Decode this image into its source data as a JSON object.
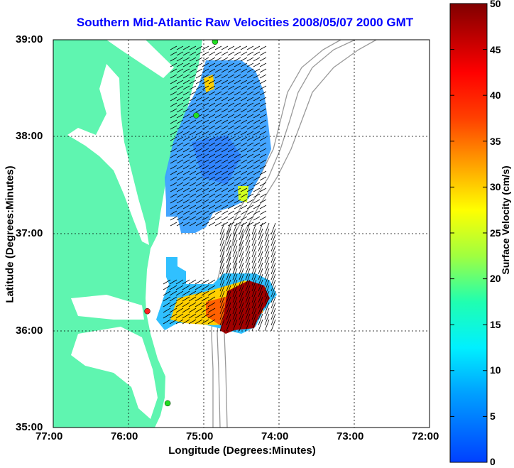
{
  "title": "Southern Mid-Atlantic Raw Velocities 2008/05/07 2000 GMT",
  "x_axis": {
    "label": "Longitude (Degrees:Minutes)",
    "ticks": [
      "77:00",
      "76:00",
      "75:00",
      "74:00",
      "73:00",
      "72:00"
    ]
  },
  "y_axis": {
    "label": "Latitude (Degrees:Minutes)",
    "ticks": [
      "39:00",
      "38:00",
      "37:00",
      "36:00",
      "35:00"
    ]
  },
  "colorbar": {
    "label": "Surface Velocity (cm/s)",
    "ticks": [
      "50",
      "45",
      "40",
      "35",
      "30",
      "25",
      "20",
      "15",
      "10",
      "5",
      "0"
    ],
    "range": [
      0,
      50
    ]
  },
  "colors": {
    "land": "#5ff5b0",
    "title": "#0000ff",
    "bathymetry": "#999999",
    "station_green": "#22dd22",
    "station_red": "#ff2222"
  },
  "map_extent": {
    "lon_range": [
      -77,
      -72
    ],
    "lat_range": [
      35,
      39
    ]
  },
  "grid": true,
  "stations": [
    {
      "lon": -74.85,
      "lat": 38.98,
      "color": "green"
    },
    {
      "lon": -75.1,
      "lat": 38.22,
      "color": "green"
    },
    {
      "lon": -75.75,
      "lat": 36.2,
      "color": "red"
    },
    {
      "lon": -75.48,
      "lat": 35.25,
      "color": "green"
    }
  ]
}
